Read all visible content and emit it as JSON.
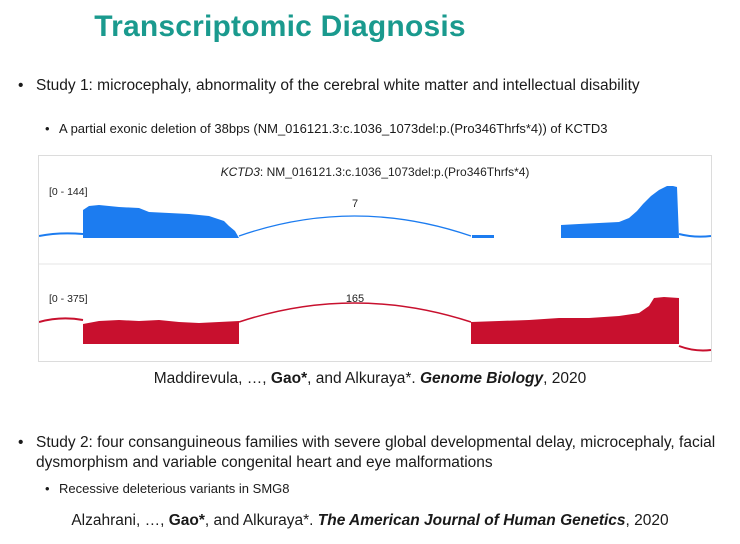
{
  "slide": {
    "title": "Transcriptomic Diagnosis"
  },
  "study1": {
    "bullet_glyph": "•",
    "text": "Study 1: microcephaly, abnormality of the cerebral white matter and intellectual disability",
    "sub_bullet_glyph": "•",
    "sub": "A partial exonic deletion of 38bps (NM_016121.3:c.1036_1073del:p.(Pro346Thrfs*4)) of KCTD3"
  },
  "figure": {
    "gene": "KCTD3",
    "variant": ": NM_016121.3:c.1036_1073del:p.(Pro346Thrfs*4)",
    "track1_range": "[0 - 144]",
    "track1_junction": "7",
    "track2_range": "[0 - 375]",
    "track2_junction": "165",
    "colors": {
      "patient": "#1c7cf0",
      "control": "#c8102e"
    }
  },
  "citation1": {
    "authors_pre": "Maddirevula, …, ",
    "author_bold": "Gao*",
    "authors_post": ", and Alkuraya*. ",
    "journal": "Genome Biology",
    "year": ", 2020"
  },
  "study2": {
    "bullet_glyph": "•",
    "text": "Study 2:  four consanguineous families with severe global developmental delay, microcephaly, facial dysmorphism and variable congenital heart and eye malformations",
    "sub_bullet_glyph": "•",
    "sub": "Recessive deleterious variants in SMG8"
  },
  "citation2": {
    "authors_pre": "Alzahrani, …, ",
    "author_bold": "Gao*",
    "authors_post": ", and Alkuraya*. ",
    "journal": "The American Journal of Human Genetics",
    "year": ", 2020"
  }
}
